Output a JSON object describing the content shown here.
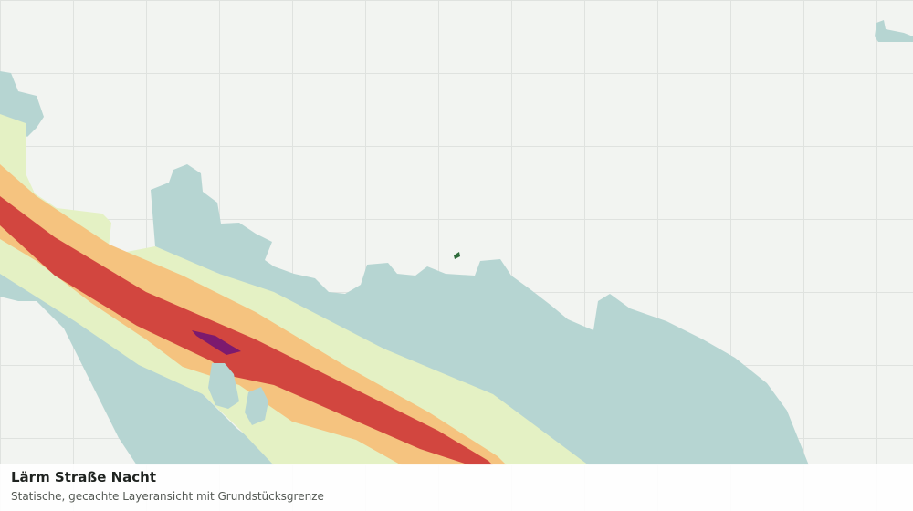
{
  "title": "Lärm Straße Nacht",
  "subtitle": "Statische, gecachte Layeransicht mit Grundstücksgrenze"
}
